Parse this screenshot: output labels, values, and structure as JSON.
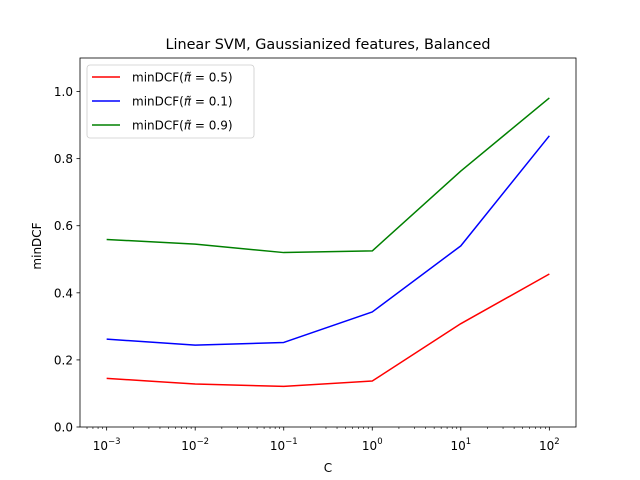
{
  "chart_data": {
    "type": "line",
    "title": "Linear SVM, Gaussianized features, Balanced",
    "xlabel": "C",
    "ylabel": "minDCF",
    "xscale": "log",
    "xlim": [
      0.0005,
      200
    ],
    "ylim": [
      0.0,
      1.1
    ],
    "grid": false,
    "legend_position": "top-left",
    "x": [
      0.001,
      0.01,
      0.1,
      1,
      10,
      100
    ],
    "x_ticks": [
      {
        "value": 0.001,
        "base": "10",
        "exp": "−3"
      },
      {
        "value": 0.01,
        "base": "10",
        "exp": "−2"
      },
      {
        "value": 0.1,
        "base": "10",
        "exp": "−1"
      },
      {
        "value": 1,
        "base": "10",
        "exp": "0"
      },
      {
        "value": 10,
        "base": "10",
        "exp": "1"
      },
      {
        "value": 100,
        "base": "10",
        "exp": "2"
      }
    ],
    "y_ticks": [
      {
        "value": 0.0,
        "label": "0.0"
      },
      {
        "value": 0.2,
        "label": "0.2"
      },
      {
        "value": 0.4,
        "label": "0.4"
      },
      {
        "value": 0.6,
        "label": "0.6"
      },
      {
        "value": 0.8,
        "label": "0.8"
      },
      {
        "value": 1.0,
        "label": "1.0"
      }
    ],
    "series": [
      {
        "name": "minDCF(π̃ = 0.5)",
        "label_prefix": "minDCF(",
        "label_symbol": "π̃",
        "label_suffix": " = 0.5)",
        "color": "#ff0000",
        "values": [
          0.145,
          0.128,
          0.121,
          0.137,
          0.308,
          0.456
        ]
      },
      {
        "name": "minDCF(π̃ = 0.1)",
        "label_prefix": "minDCF(",
        "label_symbol": "π̃",
        "label_suffix": " = 0.1)",
        "color": "#0000ff",
        "values": [
          0.262,
          0.244,
          0.252,
          0.343,
          0.54,
          0.868
        ]
      },
      {
        "name": "minDCF(π̃ = 0.9)",
        "label_prefix": "minDCF(",
        "label_symbol": "π̃",
        "label_suffix": " = 0.9)",
        "color": "#008000",
        "values": [
          0.559,
          0.545,
          0.52,
          0.525,
          0.763,
          0.981
        ]
      }
    ]
  }
}
